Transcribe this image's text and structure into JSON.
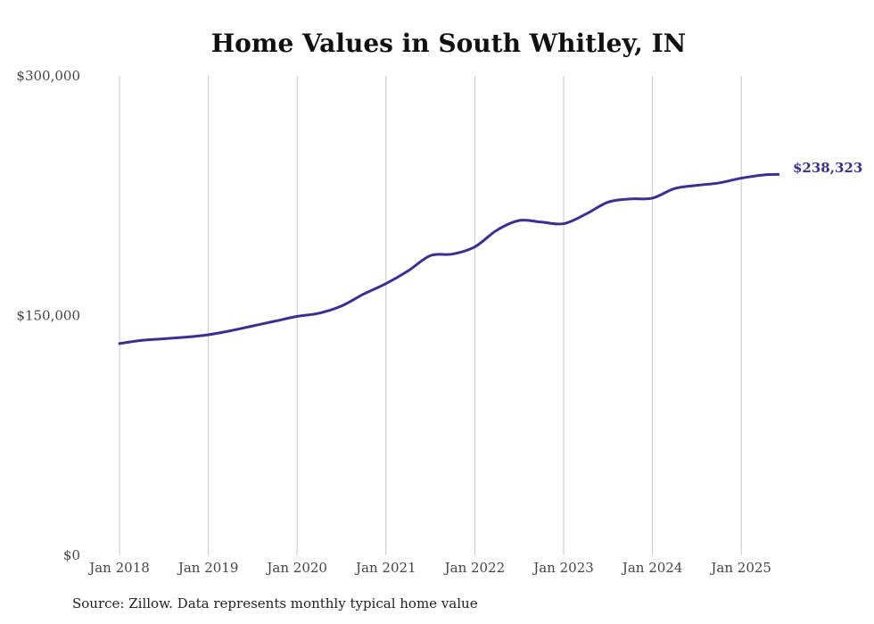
{
  "colors": {
    "line": "#3b2f8f",
    "grid": "#c8c8c8",
    "background": "#ffffff"
  },
  "source_note": "Source: Zillow. Data represents monthly typical home value",
  "chart_data": {
    "type": "line",
    "title": "Home Values in South Whitley, IN",
    "xlabel": "",
    "ylabel": "",
    "ylim": [
      0,
      300000
    ],
    "yticks": [
      0,
      150000,
      300000
    ],
    "ytick_labels": [
      "$0",
      "$150,000",
      "$300,000"
    ],
    "xlim": [
      "2017-12",
      "2025-06"
    ],
    "xticks": [
      "2018-01",
      "2019-01",
      "2020-01",
      "2021-01",
      "2022-01",
      "2023-01",
      "2024-01",
      "2025-01"
    ],
    "xtick_labels": [
      "Jan 2018",
      "Jan 2019",
      "Jan 2020",
      "Jan 2021",
      "Jan 2022",
      "Jan 2023",
      "Jan 2024",
      "Jan 2025"
    ],
    "grid": "vertical",
    "end_label": "$238,323",
    "series": [
      {
        "color": "#3b2f8f",
        "points": [
          [
            "2018-01",
            132500
          ],
          [
            "2018-04",
            134500
          ],
          [
            "2018-07",
            135500
          ],
          [
            "2018-10",
            136500
          ],
          [
            "2019-01",
            138000
          ],
          [
            "2019-04",
            140500
          ],
          [
            "2019-07",
            143500
          ],
          [
            "2019-10",
            146500
          ],
          [
            "2020-01",
            149500
          ],
          [
            "2020-04",
            151500
          ],
          [
            "2020-07",
            156000
          ],
          [
            "2020-10",
            163500
          ],
          [
            "2021-01",
            170000
          ],
          [
            "2021-04",
            178000
          ],
          [
            "2021-07",
            187500
          ],
          [
            "2021-10",
            188500
          ],
          [
            "2022-01",
            193000
          ],
          [
            "2022-04",
            203500
          ],
          [
            "2022-07",
            209500
          ],
          [
            "2022-10",
            208500
          ],
          [
            "2023-01",
            207500
          ],
          [
            "2023-04",
            213500
          ],
          [
            "2023-07",
            221000
          ],
          [
            "2023-10",
            223000
          ],
          [
            "2024-01",
            223500
          ],
          [
            "2024-04",
            229500
          ],
          [
            "2024-07",
            231500
          ],
          [
            "2024-10",
            233000
          ],
          [
            "2025-01",
            236000
          ],
          [
            "2025-04",
            238000
          ],
          [
            "2025-06",
            238323
          ]
        ]
      }
    ]
  }
}
